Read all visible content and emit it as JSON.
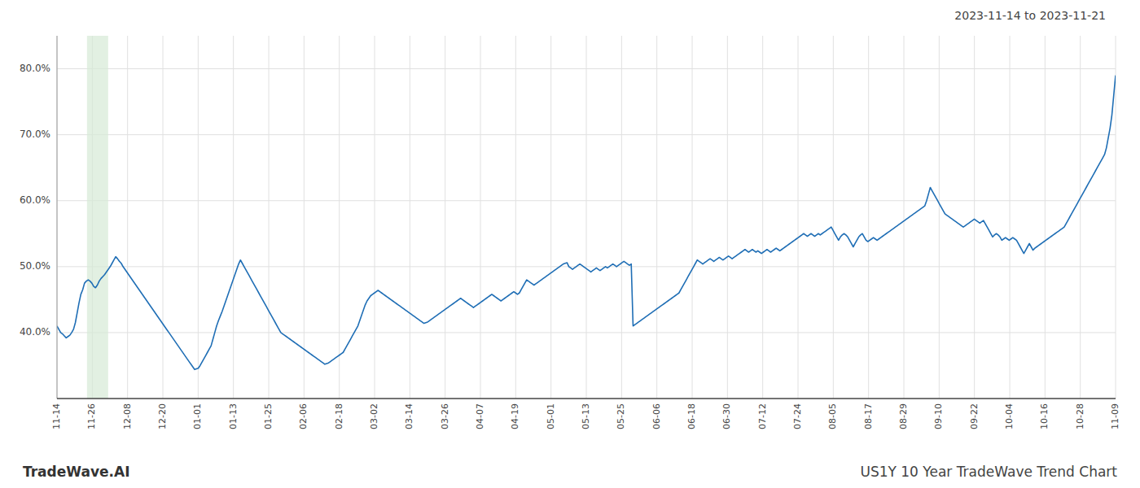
{
  "chart_data": {
    "type": "line",
    "title": "2023-11-14 to 2023-11-21",
    "annotations": [
      "TradeWave.AI",
      "US1Y 10 Year TradeWave Trend Chart"
    ],
    "grid": true,
    "xlim": [
      0,
      30
    ],
    "xticks": [
      {
        "value": 0,
        "label": "11-14"
      },
      {
        "value": 1,
        "label": "11-26"
      },
      {
        "value": 2,
        "label": "12-08"
      },
      {
        "value": 3,
        "label": "12-20"
      },
      {
        "value": 4,
        "label": "01-01"
      },
      {
        "value": 5,
        "label": "01-13"
      },
      {
        "value": 6,
        "label": "01-25"
      },
      {
        "value": 7,
        "label": "02-06"
      },
      {
        "value": 8,
        "label": "02-18"
      },
      {
        "value": 9,
        "label": "03-02"
      },
      {
        "value": 10,
        "label": "03-14"
      },
      {
        "value": 11,
        "label": "03-26"
      },
      {
        "value": 12,
        "label": "04-07"
      },
      {
        "value": 13,
        "label": "04-19"
      },
      {
        "value": 14,
        "label": "05-01"
      },
      {
        "value": 15,
        "label": "05-13"
      },
      {
        "value": 16,
        "label": "05-25"
      },
      {
        "value": 17,
        "label": "06-06"
      },
      {
        "value": 18,
        "label": "06-18"
      },
      {
        "value": 19,
        "label": "06-30"
      },
      {
        "value": 20,
        "label": "07-12"
      },
      {
        "value": 21,
        "label": "07-24"
      },
      {
        "value": 22,
        "label": "08-05"
      },
      {
        "value": 23,
        "label": "08-17"
      },
      {
        "value": 24,
        "label": "08-29"
      },
      {
        "value": 25,
        "label": "09-10"
      },
      {
        "value": 26,
        "label": "09-22"
      },
      {
        "value": 27,
        "label": "10-04"
      },
      {
        "value": 28,
        "label": "10-16"
      },
      {
        "value": 29,
        "label": "10-28"
      },
      {
        "value": 30,
        "label": "11-09"
      }
    ],
    "ylim": [
      0.3,
      0.85
    ],
    "yticks": [
      {
        "value": 0.4,
        "label": "40.0%"
      },
      {
        "value": 0.5,
        "label": "50.0%"
      },
      {
        "value": 0.6,
        "label": "60.0%"
      },
      {
        "value": 0.7,
        "label": "70.0%"
      },
      {
        "value": 0.8,
        "label": "80.0%"
      }
    ],
    "highlight": {
      "start": 0.85,
      "end": 1.45,
      "color": "#d6ead6"
    },
    "series": [
      {
        "color": "#1f6eb5",
        "values": [
          0.41,
          0.405,
          0.4,
          0.398,
          0.395,
          0.392,
          0.394,
          0.396,
          0.4,
          0.405,
          0.415,
          0.43,
          0.445,
          0.458,
          0.465,
          0.475,
          0.478,
          0.48,
          0.478,
          0.475,
          0.47,
          0.468,
          0.472,
          0.478,
          0.482,
          0.485,
          0.488,
          0.492,
          0.496,
          0.5,
          0.505,
          0.51,
          0.515,
          0.512,
          0.508,
          0.505,
          0.5,
          0.496,
          0.492,
          0.488,
          0.484,
          0.48,
          0.476,
          0.472,
          0.468,
          0.464,
          0.46,
          0.456,
          0.452,
          0.448,
          0.444,
          0.44,
          0.436,
          0.432,
          0.428,
          0.424,
          0.42,
          0.416,
          0.412,
          0.408,
          0.404,
          0.4,
          0.396,
          0.392,
          0.388,
          0.384,
          0.38,
          0.376,
          0.372,
          0.368,
          0.364,
          0.36,
          0.356,
          0.352,
          0.348,
          0.344,
          0.345,
          0.346,
          0.35,
          0.355,
          0.36,
          0.365,
          0.37,
          0.375,
          0.38,
          0.39,
          0.4,
          0.41,
          0.418,
          0.425,
          0.432,
          0.44,
          0.448,
          0.456,
          0.464,
          0.472,
          0.48,
          0.488,
          0.496,
          0.504,
          0.51,
          0.505,
          0.5,
          0.495,
          0.49,
          0.485,
          0.48,
          0.475,
          0.47,
          0.465,
          0.46,
          0.455,
          0.45,
          0.445,
          0.44,
          0.435,
          0.43,
          0.425,
          0.42,
          0.415,
          0.41,
          0.405,
          0.4,
          0.398,
          0.396,
          0.394,
          0.392,
          0.39,
          0.388,
          0.386,
          0.384,
          0.382,
          0.38,
          0.378,
          0.376,
          0.374,
          0.372,
          0.37,
          0.368,
          0.366,
          0.364,
          0.362,
          0.36,
          0.358,
          0.356,
          0.354,
          0.352,
          0.353,
          0.354,
          0.356,
          0.358,
          0.36,
          0.362,
          0.364,
          0.366,
          0.368,
          0.37,
          0.375,
          0.38,
          0.385,
          0.39,
          0.395,
          0.4,
          0.405,
          0.41,
          0.418,
          0.426,
          0.434,
          0.442,
          0.448,
          0.452,
          0.456,
          0.458,
          0.46,
          0.462,
          0.464,
          0.462,
          0.46,
          0.458,
          0.456,
          0.454,
          0.452,
          0.45,
          0.448,
          0.446,
          0.444,
          0.442,
          0.44,
          0.438,
          0.436,
          0.434,
          0.432,
          0.43,
          0.428,
          0.426,
          0.424,
          0.422,
          0.42,
          0.418,
          0.416,
          0.414,
          0.415,
          0.416,
          0.418,
          0.42,
          0.422,
          0.424,
          0.426,
          0.428,
          0.43,
          0.432,
          0.434,
          0.436,
          0.438,
          0.44,
          0.442,
          0.444,
          0.446,
          0.448,
          0.45,
          0.452,
          0.45,
          0.448,
          0.446,
          0.444,
          0.442,
          0.44,
          0.438,
          0.44,
          0.442,
          0.444,
          0.446,
          0.448,
          0.45,
          0.452,
          0.454,
          0.456,
          0.458,
          0.456,
          0.454,
          0.452,
          0.45,
          0.448,
          0.45,
          0.452,
          0.454,
          0.456,
          0.458,
          0.46,
          0.462,
          0.46,
          0.458,
          0.46,
          0.465,
          0.47,
          0.475,
          0.48,
          0.478,
          0.476,
          0.474,
          0.472,
          0.474,
          0.476,
          0.478,
          0.48,
          0.482,
          0.484,
          0.486,
          0.488,
          0.49,
          0.492,
          0.494,
          0.496,
          0.498,
          0.5,
          0.502,
          0.504,
          0.505,
          0.506,
          0.5,
          0.498,
          0.496,
          0.498,
          0.5,
          0.502,
          0.504,
          0.502,
          0.5,
          0.498,
          0.496,
          0.494,
          0.492,
          0.494,
          0.496,
          0.498,
          0.496,
          0.494,
          0.496,
          0.498,
          0.5,
          0.498,
          0.5,
          0.502,
          0.504,
          0.502,
          0.5,
          0.502,
          0.504,
          0.506,
          0.508,
          0.506,
          0.504,
          0.502,
          0.504,
          0.41,
          0.412,
          0.414,
          0.416,
          0.418,
          0.42,
          0.422,
          0.424,
          0.426,
          0.428,
          0.43,
          0.432,
          0.434,
          0.436,
          0.438,
          0.44,
          0.442,
          0.444,
          0.446,
          0.448,
          0.45,
          0.452,
          0.454,
          0.456,
          0.458,
          0.46,
          0.465,
          0.47,
          0.475,
          0.48,
          0.485,
          0.49,
          0.495,
          0.5,
          0.505,
          0.51,
          0.508,
          0.506,
          0.504,
          0.506,
          0.508,
          0.51,
          0.512,
          0.51,
          0.508,
          0.51,
          0.512,
          0.514,
          0.512,
          0.51,
          0.512,
          0.514,
          0.516,
          0.514,
          0.512,
          0.514,
          0.516,
          0.518,
          0.52,
          0.522,
          0.524,
          0.526,
          0.524,
          0.522,
          0.524,
          0.526,
          0.524,
          0.522,
          0.524,
          0.522,
          0.52,
          0.522,
          0.524,
          0.526,
          0.524,
          0.522,
          0.524,
          0.526,
          0.528,
          0.526,
          0.524,
          0.526,
          0.528,
          0.53,
          0.532,
          0.534,
          0.536,
          0.538,
          0.54,
          0.542,
          0.544,
          0.546,
          0.548,
          0.55,
          0.548,
          0.546,
          0.548,
          0.55,
          0.548,
          0.546,
          0.548,
          0.55,
          0.548,
          0.55,
          0.552,
          0.554,
          0.556,
          0.558,
          0.56,
          0.555,
          0.55,
          0.545,
          0.54,
          0.545,
          0.548,
          0.55,
          0.548,
          0.545,
          0.54,
          0.535,
          0.53,
          0.535,
          0.54,
          0.545,
          0.548,
          0.55,
          0.545,
          0.54,
          0.538,
          0.54,
          0.542,
          0.544,
          0.542,
          0.54,
          0.542,
          0.544,
          0.546,
          0.548,
          0.55,
          0.552,
          0.554,
          0.556,
          0.558,
          0.56,
          0.562,
          0.564,
          0.566,
          0.568,
          0.57,
          0.572,
          0.574,
          0.576,
          0.578,
          0.58,
          0.582,
          0.584,
          0.586,
          0.588,
          0.59,
          0.592,
          0.6,
          0.61,
          0.62,
          0.615,
          0.61,
          0.605,
          0.6,
          0.595,
          0.59,
          0.585,
          0.58,
          0.578,
          0.576,
          0.574,
          0.572,
          0.57,
          0.568,
          0.566,
          0.564,
          0.562,
          0.56,
          0.562,
          0.564,
          0.566,
          0.568,
          0.57,
          0.572,
          0.57,
          0.568,
          0.566,
          0.568,
          0.57,
          0.565,
          0.56,
          0.555,
          0.55,
          0.545,
          0.548,
          0.55,
          0.548,
          0.545,
          0.54,
          0.542,
          0.544,
          0.542,
          0.54,
          0.542,
          0.544,
          0.542,
          0.54,
          0.535,
          0.53,
          0.525,
          0.52,
          0.525,
          0.53,
          0.535,
          0.53,
          0.525,
          0.528,
          0.53,
          0.532,
          0.534,
          0.536,
          0.538,
          0.54,
          0.542,
          0.544,
          0.546,
          0.548,
          0.55,
          0.552,
          0.554,
          0.556,
          0.558,
          0.56,
          0.565,
          0.57,
          0.575,
          0.58,
          0.585,
          0.59,
          0.595,
          0.6,
          0.605,
          0.61,
          0.615,
          0.62,
          0.625,
          0.63,
          0.635,
          0.64,
          0.645,
          0.65,
          0.655,
          0.66,
          0.665,
          0.67,
          0.68,
          0.695,
          0.71,
          0.73,
          0.76,
          0.79
        ]
      }
    ]
  }
}
